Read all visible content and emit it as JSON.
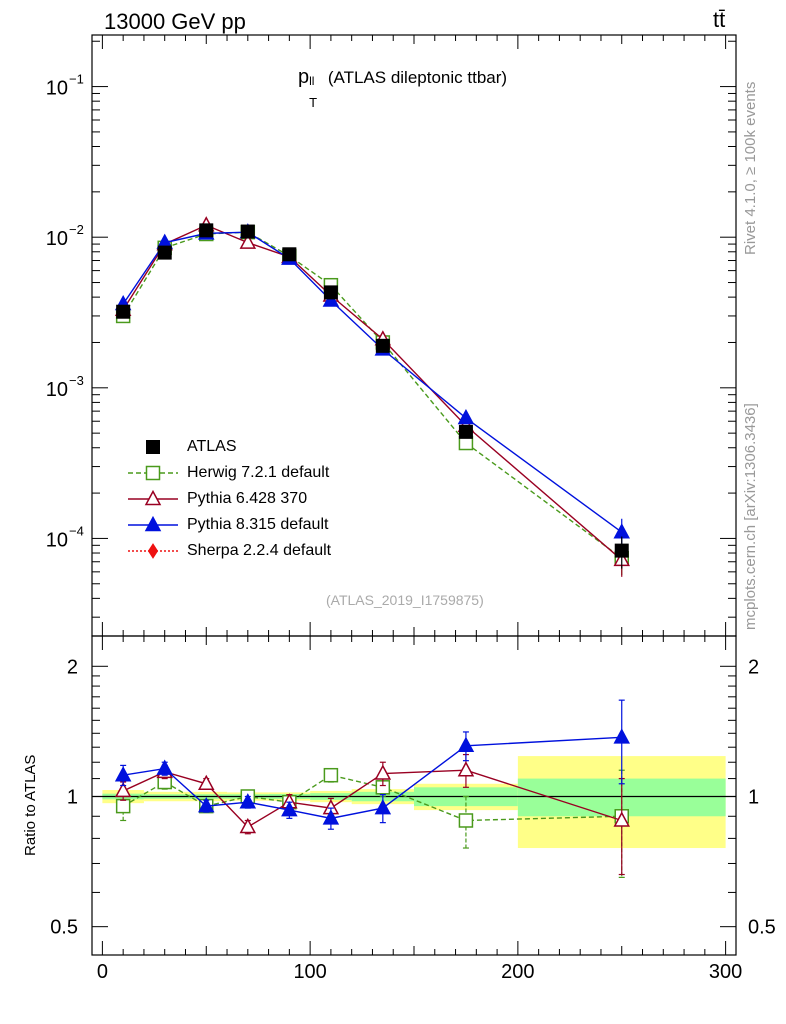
{
  "header": {
    "energy": "13000 GeV pp",
    "process": "tt̄"
  },
  "plot_title": {
    "main": "p",
    "sup": "ll",
    "sub": "T",
    "rest": " (ATLAS dileptonic ttbar)"
  },
  "side_text": {
    "rivet": "Rivet 4.1.0, ≥ 100k events",
    "mcplots": "mcplots.cern.ch [arXiv:1306.3436]"
  },
  "analysis_id": "(ATLAS_2019_I1759875)",
  "ratio_ylabel": "Ratio to ATLAS",
  "upper_ticks": [
    {
      "v": 0.1,
      "b": "10",
      "e": "−1"
    },
    {
      "v": 0.01,
      "b": "10",
      "e": "−2"
    },
    {
      "v": 0.001,
      "b": "10",
      "e": "−3"
    },
    {
      "v": 0.0001,
      "b": "10",
      "e": "−4"
    }
  ],
  "ratio_ticks": [
    {
      "v": 2,
      "t": "2"
    },
    {
      "v": 1,
      "t": "1"
    },
    {
      "v": 0.5,
      "t": "0.5"
    }
  ],
  "x_ticks": [
    {
      "v": 0,
      "t": "0"
    },
    {
      "v": 100,
      "t": "100"
    },
    {
      "v": 200,
      "t": "200"
    },
    {
      "v": 300,
      "t": "300"
    }
  ],
  "colors": {
    "herwig": "#4a9a1c",
    "pythia6": "#990022",
    "pythia8": "#0011dd",
    "sherpa": "#ee1111",
    "data": "#000000",
    "band_inner": "#99ff99",
    "band_outer": "#ffff88"
  },
  "chart_data": {
    "type": "scatter",
    "title": "p_T^ll (ATLAS dileptonic ttbar)",
    "xlabel": "",
    "ylabel": "",
    "xlim": [
      -5,
      305
    ],
    "ylim": [
      2.25e-05,
      0.22
    ],
    "ratio_ylim": [
      0.43,
      2.35
    ],
    "bins": [
      {
        "lo": 0,
        "hi": 20
      },
      {
        "lo": 20,
        "hi": 40
      },
      {
        "lo": 40,
        "hi": 60
      },
      {
        "lo": 60,
        "hi": 80
      },
      {
        "lo": 80,
        "hi": 100
      },
      {
        "lo": 100,
        "hi": 120
      },
      {
        "lo": 120,
        "hi": 150
      },
      {
        "lo": 150,
        "hi": 200
      },
      {
        "lo": 200,
        "hi": 300
      }
    ],
    "x": [
      10,
      30,
      50,
      70,
      90,
      110,
      135,
      175,
      250
    ],
    "data": {
      "name": "ATLAS",
      "values": [
        0.0032,
        0.0079,
        0.0111,
        0.0109,
        0.0077,
        0.0043,
        0.0019,
        0.00051,
        8.3e-05
      ],
      "stat_ratio": [
        0.015,
        0.012,
        0.012,
        0.012,
        0.013,
        0.018,
        0.025,
        0.05,
        0.1
      ],
      "total_ratio": [
        0.035,
        0.025,
        0.025,
        0.022,
        0.022,
        0.03,
        0.04,
        0.07,
        0.24
      ]
    },
    "series": [
      {
        "key": "herwig",
        "name": "Herwig 7.2.1 default",
        "marker": "open-square",
        "dash": true,
        "values": [
          0.003,
          0.0085,
          0.0105,
          0.0108,
          0.0075,
          0.0048,
          0.002,
          0.00043,
          7.4e-05
        ],
        "ratio": [
          0.95,
          1.08,
          0.95,
          1.0,
          0.97,
          1.12,
          1.05,
          0.88,
          0.9
        ],
        "ratio_err": [
          0.07,
          0.04,
          0.03,
          0.03,
          0.04,
          0.04,
          0.05,
          0.12,
          0.25
        ]
      },
      {
        "key": "pythia6",
        "name": "Pythia 6.428 370",
        "marker": "open-triangle",
        "dash": false,
        "values": [
          0.0033,
          0.009,
          0.012,
          0.0092,
          0.0074,
          0.0041,
          0.0021,
          0.00056,
          7.2e-05
        ],
        "ratio": [
          1.03,
          1.14,
          1.07,
          0.85,
          0.97,
          0.94,
          1.13,
          1.15,
          0.88
        ],
        "ratio_err": [
          0.05,
          0.04,
          0.03,
          0.03,
          0.04,
          0.05,
          0.07,
          0.1,
          0.22
        ]
      },
      {
        "key": "pythia8",
        "name": "Pythia 8.315 default",
        "marker": "filled-triangle",
        "dash": false,
        "values": [
          0.0036,
          0.0092,
          0.0106,
          0.0108,
          0.0072,
          0.0038,
          0.0018,
          0.00063,
          0.00011
        ],
        "ratio": [
          1.12,
          1.16,
          0.95,
          0.97,
          0.93,
          0.89,
          0.94,
          1.31,
          1.37
        ],
        "ratio_err": [
          0.06,
          0.04,
          0.03,
          0.03,
          0.04,
          0.05,
          0.07,
          0.1,
          0.3
        ]
      },
      {
        "key": "sherpa",
        "name": "Sherpa 2.2.4 default",
        "marker": "filled-diamond",
        "dash": true,
        "values": [],
        "ratio": [],
        "ratio_err": []
      }
    ]
  }
}
